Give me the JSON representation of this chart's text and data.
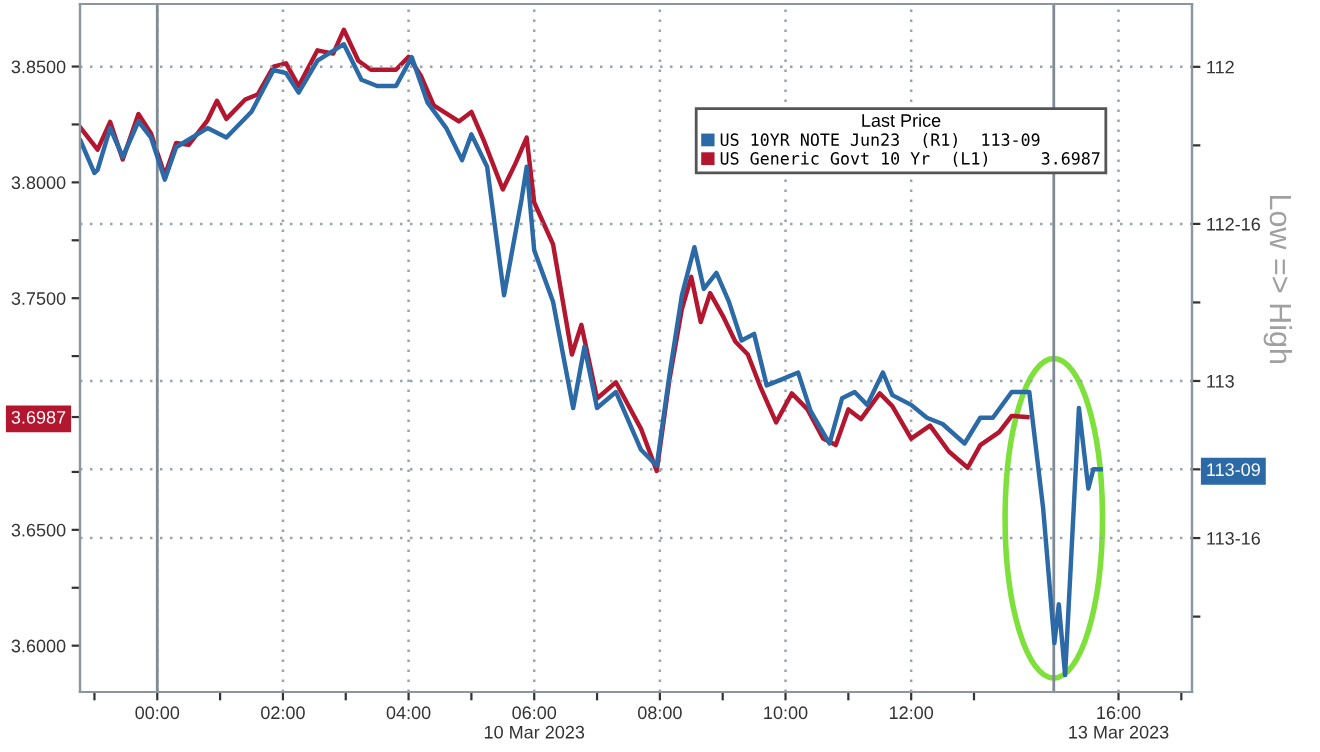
{
  "chart_data": {
    "type": "line",
    "legend_title": "Last Price",
    "y2label": "Low => High",
    "xlim": [
      -1.23,
      16.47
    ],
    "xticks": [
      {
        "value": -1,
        "label": null
      },
      {
        "value": 0,
        "label": "00:00"
      },
      {
        "value": 1,
        "label": null
      },
      {
        "value": 2,
        "label": "02:00"
      },
      {
        "value": 3,
        "label": null
      },
      {
        "value": 4,
        "label": "04:00"
      },
      {
        "value": 5,
        "label": null
      },
      {
        "value": 6,
        "label": "06:00\n10 Mar 2023"
      },
      {
        "value": 7,
        "label": null
      },
      {
        "value": 8,
        "label": "08:00"
      },
      {
        "value": 9,
        "label": null
      },
      {
        "value": 10,
        "label": "10:00"
      },
      {
        "value": 11,
        "label": null
      },
      {
        "value": 12,
        "label": "12:00"
      },
      {
        "value": 13,
        "label": null
      },
      {
        "value": 15.3,
        "label": "16:00\n13 Mar 2023"
      },
      {
        "value": 16.3,
        "label": null
      }
    ],
    "ylim": [
      3.58,
      3.877
    ],
    "yticks": [
      {
        "value": 3.6,
        "label": "3.6000"
      },
      {
        "value": 3.625,
        "label": null
      },
      {
        "value": 3.65,
        "label": "3.6500"
      },
      {
        "value": 3.675,
        "label": null
      },
      {
        "value": 3.6987,
        "label": "3.6987"
      },
      {
        "value": 3.725,
        "label": null
      },
      {
        "value": 3.75,
        "label": "3.7500"
      },
      {
        "value": 3.775,
        "label": null
      },
      {
        "value": 3.8,
        "label": "3.8000"
      },
      {
        "value": 3.825,
        "label": null
      },
      {
        "value": 3.85,
        "label": "3.8500"
      }
    ],
    "y2lim": [
      113.99,
      111.8
    ],
    "y2ticks": [
      {
        "value": 112,
        "label": "112"
      },
      {
        "value": 112.25,
        "label": null
      },
      {
        "value": 112.5,
        "label": "112-16"
      },
      {
        "value": 112.75,
        "label": null
      },
      {
        "value": 113,
        "label": "113"
      },
      {
        "value": 113.28125,
        "label": "113-09"
      },
      {
        "value": 113.5,
        "label": "113-16"
      },
      {
        "value": 113.75,
        "label": null
      }
    ],
    "grid": true,
    "legend": "top right",
    "line_style": "solid",
    "ref_lines": [
      {
        "axis": "x",
        "value": 0,
        "color": "#7f8a94"
      },
      {
        "axis": "x",
        "value": 14.27,
        "color": "#7f8a94"
      }
    ],
    "series": [
      {
        "name": "US 10YR NOTE Jun23  (R1)  113-09",
        "color": "#2b6aa6",
        "axis": "y2",
        "x": [
          -1.22,
          -1.0,
          -0.95,
          -0.75,
          -0.55,
          -0.3,
          -0.1,
          0.12,
          0.3,
          0.8,
          1.1,
          1.5,
          1.85,
          2.05,
          2.25,
          2.55,
          2.97,
          3.25,
          3.5,
          3.8,
          4.05,
          4.3,
          4.6,
          4.85,
          5.0,
          5.25,
          5.52,
          5.8,
          5.88,
          6.0,
          6.3,
          6.62,
          6.8,
          7.0,
          7.3,
          7.7,
          7.95,
          8.15,
          8.35,
          8.55,
          8.7,
          8.9,
          9.1,
          9.3,
          9.5,
          9.7,
          9.95,
          10.2,
          10.4,
          10.7,
          10.9,
          11.1,
          11.3,
          11.55,
          11.7,
          12.0,
          12.25,
          12.5,
          12.85,
          13.1,
          13.3,
          13.6,
          13.88,
          14.1,
          14.28,
          14.35,
          14.45,
          14.67,
          14.82,
          14.9,
          15.02
        ],
        "values": [
          112.236,
          112.338,
          112.328,
          112.195,
          112.287,
          112.174,
          112.225,
          112.359,
          112.256,
          112.195,
          112.225,
          112.143,
          112.01,
          112.02,
          112.082,
          111.98,
          111.928,
          112.041,
          112.061,
          112.061,
          111.969,
          112.113,
          112.195,
          112.297,
          112.215,
          112.318,
          112.727,
          112.42,
          112.318,
          112.584,
          112.748,
          113.086,
          112.891,
          113.086,
          113.035,
          113.219,
          113.27,
          112.984,
          112.727,
          112.574,
          112.707,
          112.656,
          112.748,
          112.871,
          112.85,
          113.014,
          112.994,
          112.973,
          113.096,
          113.199,
          113.055,
          113.035,
          113.076,
          112.973,
          113.045,
          113.076,
          113.117,
          113.137,
          113.199,
          113.117,
          113.117,
          113.035,
          113.035,
          113.404,
          113.834,
          113.711,
          113.936,
          113.086,
          113.342,
          113.281,
          113.28125
        ]
      },
      {
        "name": "US Generic Govt 10 Yr  (L1)     3.6987",
        "color": "#b3162f",
        "x": [
          -1.22,
          -0.95,
          -0.75,
          -0.55,
          -0.3,
          -0.1,
          0.12,
          0.3,
          0.5,
          0.8,
          0.95,
          1.1,
          1.4,
          1.6,
          1.85,
          2.05,
          2.25,
          2.55,
          2.8,
          2.97,
          3.2,
          3.4,
          3.6,
          3.8,
          4.0,
          4.2,
          4.4,
          4.8,
          5.0,
          5.2,
          5.5,
          5.7,
          5.88,
          6.0,
          6.3,
          6.6,
          6.75,
          7.0,
          7.3,
          7.7,
          7.95,
          8.15,
          8.35,
          8.5,
          8.65,
          8.8,
          9.0,
          9.2,
          9.4,
          9.6,
          9.85,
          10.1,
          10.35,
          10.6,
          10.8,
          11.0,
          11.2,
          11.5,
          11.7,
          12.0,
          12.3,
          12.6,
          12.9,
          13.1,
          13.4,
          13.6,
          13.85
        ],
        "values": [
          3.8235,
          3.8141,
          3.8261,
          3.8099,
          3.8295,
          3.8211,
          3.803,
          3.817,
          3.8162,
          3.8268,
          3.8352,
          3.8274,
          3.8358,
          3.838,
          3.85,
          3.8514,
          3.8416,
          3.857,
          3.8556,
          3.8659,
          3.8525,
          3.8486,
          3.8486,
          3.8486,
          3.8542,
          3.8458,
          3.8332,
          3.8263,
          3.8304,
          3.8179,
          3.7969,
          3.8081,
          3.8193,
          3.7913,
          3.7732,
          3.7257,
          3.7385,
          3.7067,
          3.7137,
          3.6936,
          3.6754,
          3.7145,
          3.7453,
          3.7592,
          3.7397,
          3.7522,
          3.7425,
          3.7313,
          3.7257,
          3.7117,
          3.6964,
          3.7089,
          3.702,
          3.6894,
          3.6866,
          3.702,
          3.6978,
          3.7089,
          3.7034,
          3.6894,
          3.695,
          3.6838,
          3.6768,
          3.6866,
          3.6922,
          3.6992,
          3.6987
        ]
      }
    ]
  }
}
